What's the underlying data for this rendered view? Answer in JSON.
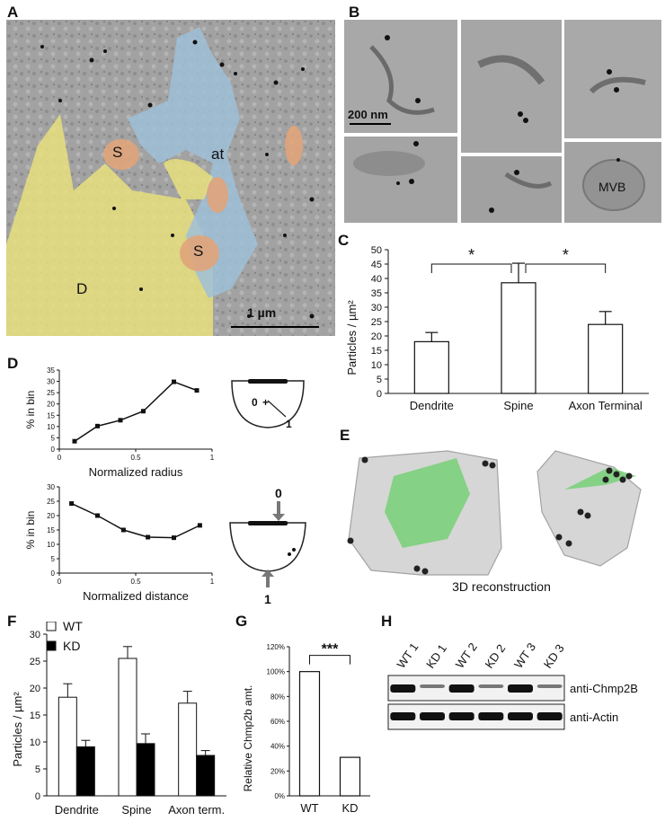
{
  "panel_labels": {
    "a": "A",
    "b": "B",
    "c": "C",
    "d": "D",
    "e": "E",
    "f": "F",
    "g": "G",
    "h": "H"
  },
  "panel_a": {
    "label_at": "at",
    "label_s1": "S",
    "label_s2": "S",
    "label_d": "D",
    "scalebar": "1 µm"
  },
  "panel_b": {
    "scalebar": "200 nm",
    "mvb": "MVB"
  },
  "panel_e": {
    "caption": "3D reconstruction"
  },
  "panel_h": {
    "lanes": [
      "WT 1",
      "KD 1",
      "WT 2",
      "KD 2",
      "WT 3",
      "KD 3"
    ],
    "row1": "anti-Chmp2B",
    "row2": "anti-Actin"
  },
  "chart_data": [
    {
      "panel": "C",
      "type": "bar",
      "categories": [
        "Dendrite",
        "Spine",
        "Axon Terminal"
      ],
      "values": [
        18,
        38.5,
        24
      ],
      "errors": [
        3.2,
        6.8,
        4.5
      ],
      "ylabel": "Particles / µm²",
      "ylim": [
        0,
        50
      ],
      "yticks": [
        "0",
        "5",
        "10",
        "15",
        "20",
        "25",
        "30",
        "35",
        "40",
        "45",
        "50"
      ],
      "significance": [
        "*",
        "*"
      ]
    },
    {
      "panel": "D-top",
      "type": "line",
      "x": [
        0.1,
        0.25,
        0.4,
        0.55,
        0.75,
        0.9
      ],
      "y": [
        3.5,
        10.2,
        12.8,
        16.8,
        29.8,
        26
      ],
      "xlabel": "Normalized radius",
      "ylabel": "% in bin",
      "ylim": [
        0,
        35
      ],
      "xlim": [
        0,
        1
      ],
      "yticks": [
        "0",
        "5",
        "10",
        "15",
        "20",
        "25",
        "30",
        "35"
      ],
      "xticks": [
        "0",
        "0.5",
        "1"
      ],
      "diagram_labels": [
        "0",
        "+",
        "1"
      ]
    },
    {
      "panel": "D-bottom",
      "type": "line",
      "x": [
        0.08,
        0.25,
        0.42,
        0.58,
        0.75,
        0.92
      ],
      "y": [
        24.2,
        20,
        15,
        12.5,
        12.3,
        16.6
      ],
      "xlabel": "Normalized distance",
      "ylabel": "% in bin",
      "ylim": [
        0,
        30
      ],
      "xlim": [
        0,
        1
      ],
      "yticks": [
        "0",
        "5",
        "10",
        "15",
        "20",
        "25",
        "30"
      ],
      "xticks": [
        "0",
        "0.5",
        "1"
      ],
      "diagram_labels": [
        "0",
        "1"
      ]
    },
    {
      "panel": "F",
      "type": "bar",
      "categories": [
        "Dendrite",
        "Spine",
        "Axon term."
      ],
      "series": [
        {
          "name": "WT",
          "values": [
            18.3,
            25.5,
            17.2
          ],
          "errors": [
            2.5,
            2.2,
            2.2
          ],
          "color": "#ffffff"
        },
        {
          "name": "KD",
          "values": [
            9.1,
            9.7,
            7.5
          ],
          "errors": [
            1.2,
            1.8,
            0.9
          ],
          "color": "#000000"
        }
      ],
      "ylabel": "Particles / µm²",
      "ylim": [
        0,
        30
      ],
      "yticks": [
        "0",
        "5",
        "10",
        "15",
        "20",
        "25",
        "30"
      ]
    },
    {
      "panel": "G",
      "type": "bar",
      "categories": [
        "WT",
        "KD"
      ],
      "values": [
        100,
        31
      ],
      "ylabel": "Relative Chmp2b amt.",
      "ylim": [
        0,
        120
      ],
      "yticks": [
        "0%",
        "20%",
        "40%",
        "60%",
        "80%",
        "100%",
        "120%"
      ],
      "significance": "***"
    }
  ]
}
